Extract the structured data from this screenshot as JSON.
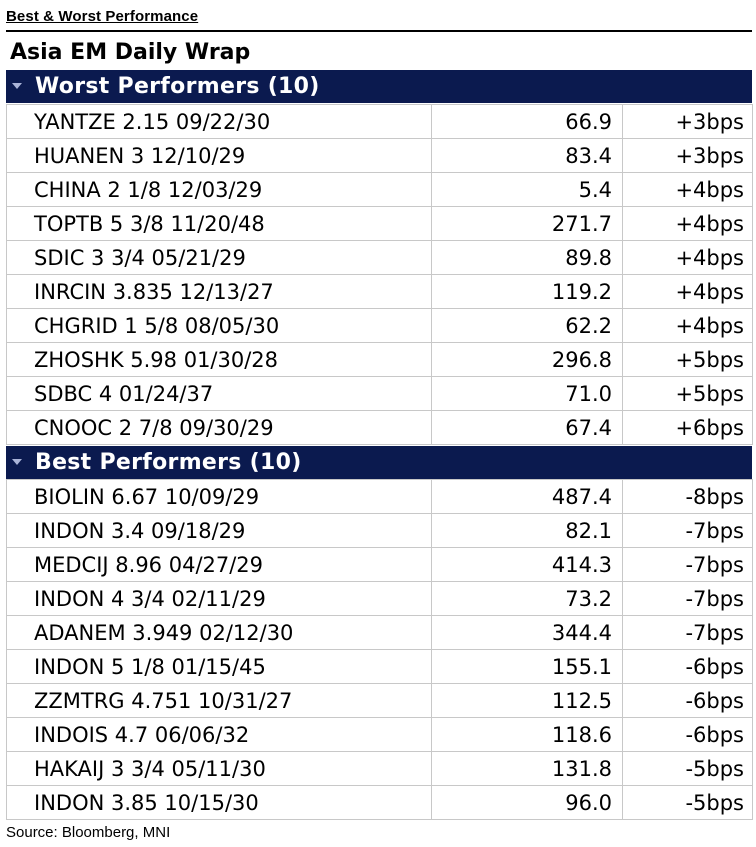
{
  "header": {
    "title": "Best & Worst Performance",
    "subtitle": "Asia EM Daily Wrap"
  },
  "worst": {
    "label": "Worst Performers (10)",
    "rows": [
      {
        "name": "YANTZE 2.15 09/22/30",
        "price": "66.9",
        "change": "+3bps"
      },
      {
        "name": "HUANEN 3 12/10/29",
        "price": "83.4",
        "change": "+3bps"
      },
      {
        "name": "CHINA 2 1/8 12/03/29",
        "price": "5.4",
        "change": "+4bps"
      },
      {
        "name": "TOPTB 5 3/8 11/20/48",
        "price": "271.7",
        "change": "+4bps"
      },
      {
        "name": "SDIC 3 3/4 05/21/29",
        "price": "89.8",
        "change": "+4bps"
      },
      {
        "name": "INRCIN 3.835 12/13/27",
        "price": "119.2",
        "change": "+4bps"
      },
      {
        "name": "CHGRID 1 5/8 08/05/30",
        "price": "62.2",
        "change": "+4bps"
      },
      {
        "name": "ZHOSHK 5.98 01/30/28",
        "price": "296.8",
        "change": "+5bps"
      },
      {
        "name": "SDBC 4 01/24/37",
        "price": "71.0",
        "change": "+5bps"
      },
      {
        "name": "CNOOC 2 7/8 09/30/29",
        "price": "67.4",
        "change": "+6bps"
      }
    ]
  },
  "best": {
    "label": "Best Performers (10)",
    "rows": [
      {
        "name": "BIOLIN 6.67 10/09/29",
        "price": "487.4",
        "change": "-8bps"
      },
      {
        "name": "INDON 3.4 09/18/29",
        "price": "82.1",
        "change": "-7bps"
      },
      {
        "name": "MEDCIJ 8.96 04/27/29",
        "price": "414.3",
        "change": "-7bps"
      },
      {
        "name": "INDON 4 3/4 02/11/29",
        "price": "73.2",
        "change": "-7bps"
      },
      {
        "name": "ADANEM 3.949 02/12/30",
        "price": "344.4",
        "change": "-7bps"
      },
      {
        "name": "INDON 5 1/8 01/15/45",
        "price": "155.1",
        "change": "-6bps"
      },
      {
        "name": "ZZMTRG 4.751 10/31/27",
        "price": "112.5",
        "change": "-6bps"
      },
      {
        "name": "INDOIS 4.7 06/06/32",
        "price": "118.6",
        "change": "-6bps"
      },
      {
        "name": "HAKAIJ 3 3/4 05/11/30",
        "price": "131.8",
        "change": "-5bps"
      },
      {
        "name": "INDON 3.85 10/15/30",
        "price": "96.0",
        "change": "-5bps"
      }
    ]
  },
  "footer": {
    "source": "Source: Bloomberg, MNI"
  },
  "colors": {
    "section_bg": "#0b1a4f",
    "section_text": "#ffffff",
    "grid_line": "#c8c8c8"
  }
}
